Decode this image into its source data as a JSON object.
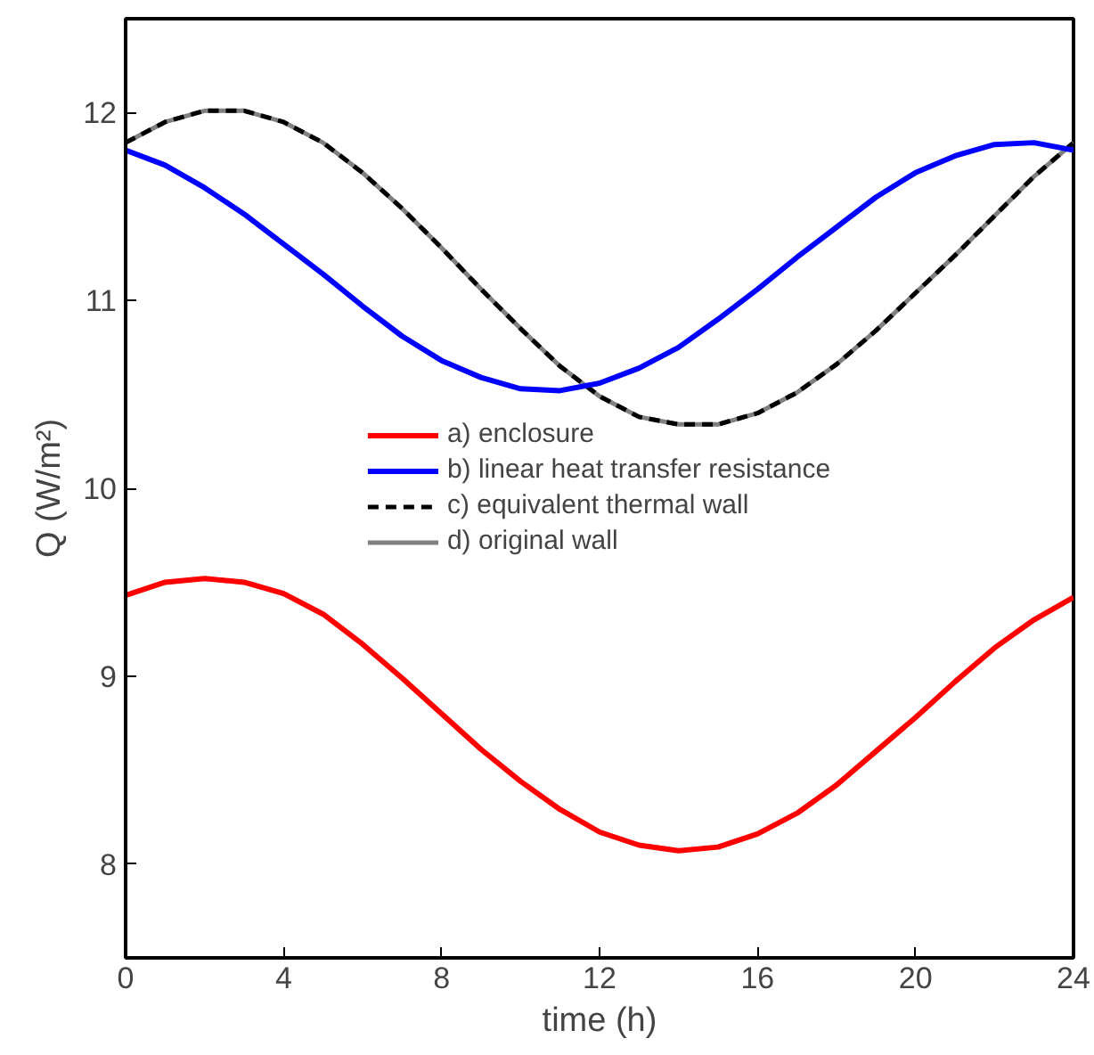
{
  "chart_data": {
    "type": "line",
    "xlabel": "time (h)",
    "ylabel": "Q (W/m²)",
    "x": [
      0,
      1,
      2,
      3,
      4,
      5,
      6,
      7,
      8,
      9,
      10,
      11,
      12,
      13,
      14,
      15,
      16,
      17,
      18,
      19,
      20,
      21,
      22,
      23,
      24
    ],
    "xlim": [
      0,
      24
    ],
    "xticks": [
      0,
      4,
      8,
      12,
      16,
      20,
      24
    ],
    "ylim": [
      7.5,
      12.5
    ],
    "yticks": [
      8,
      9,
      10,
      11,
      12
    ],
    "grid": false,
    "legend": "center",
    "marker": "none",
    "series": [
      {
        "name": "a) enclosure",
        "color": "#ff0000",
        "line_style": "solid",
        "values": [
          9.43,
          9.5,
          9.52,
          9.5,
          9.44,
          9.33,
          9.17,
          8.99,
          8.8,
          8.61,
          8.44,
          8.29,
          8.17,
          8.1,
          8.07,
          8.09,
          8.16,
          8.27,
          8.42,
          8.6,
          8.78,
          8.97,
          9.15,
          9.3,
          9.42
        ]
      },
      {
        "name": "b) linear heat transfer resistance",
        "color": "#0000ff",
        "line_style": "solid",
        "values": [
          11.8,
          11.72,
          11.6,
          11.46,
          11.3,
          11.14,
          10.97,
          10.81,
          10.68,
          10.59,
          10.53,
          10.52,
          10.56,
          10.64,
          10.75,
          10.9,
          11.06,
          11.23,
          11.39,
          11.55,
          11.68,
          11.77,
          11.83,
          11.84,
          11.8
        ]
      },
      {
        "name": "c) equivalent thermal wall",
        "color": "#000000",
        "line_style": "dashed",
        "values": [
          11.84,
          11.95,
          12.01,
          12.01,
          11.95,
          11.84,
          11.68,
          11.49,
          11.28,
          11.06,
          10.85,
          10.65,
          10.49,
          10.38,
          10.34,
          10.34,
          10.4,
          10.51,
          10.66,
          10.84,
          11.04,
          11.24,
          11.45,
          11.66,
          11.84
        ]
      },
      {
        "name": "d) original wall",
        "color": "#808080",
        "line_style": "solid",
        "values": [
          11.84,
          11.95,
          12.01,
          12.01,
          11.95,
          11.84,
          11.68,
          11.49,
          11.28,
          11.06,
          10.85,
          10.65,
          10.49,
          10.38,
          10.34,
          10.34,
          10.4,
          10.51,
          10.66,
          10.84,
          11.04,
          11.24,
          11.45,
          11.66,
          11.84
        ]
      }
    ]
  }
}
